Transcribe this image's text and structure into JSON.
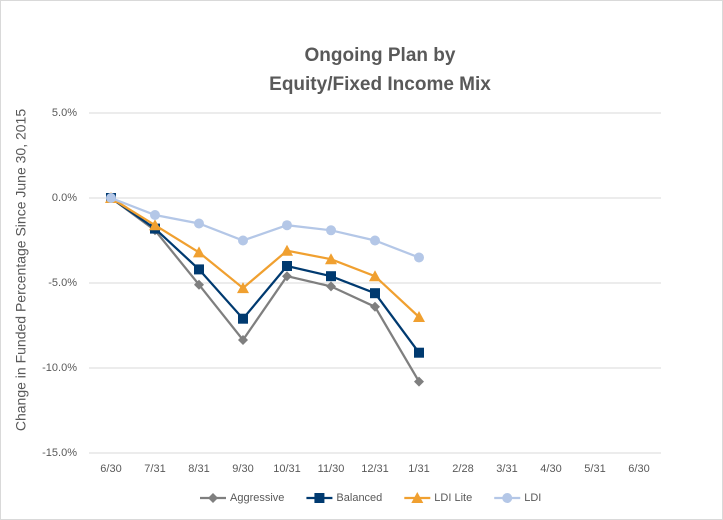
{
  "chart_data": {
    "type": "line",
    "title": [
      "Ongoing Plan by",
      "Equity/Fixed Income Mix"
    ],
    "y_label": "Change in Funded Percentage Since June 30, 2015",
    "categories": [
      "6/30",
      "7/31",
      "8/31",
      "9/30",
      "10/31",
      "11/30",
      "12/31",
      "1/31",
      "2/28",
      "3/31",
      "4/30",
      "5/31",
      "6/30"
    ],
    "series": [
      {
        "name": "Aggressive",
        "color": "#7f7f7f",
        "marker": "diamond",
        "values": [
          0,
          -1.9,
          -5.1,
          -8.35,
          -4.6,
          -5.2,
          -6.4,
          -10.8,
          null,
          null,
          null,
          null,
          null
        ]
      },
      {
        "name": "Balanced",
        "color": "#003a70",
        "marker": "square",
        "values": [
          0,
          -1.8,
          -4.2,
          -7.1,
          -4.0,
          -4.6,
          -5.6,
          -9.1,
          null,
          null,
          null,
          null,
          null
        ]
      },
      {
        "name": "LDI Lite",
        "color": "#f0a030",
        "marker": "triangle",
        "values": [
          0,
          -1.6,
          -3.2,
          -5.3,
          -3.1,
          -3.6,
          -4.6,
          -7.0,
          null,
          null,
          null,
          null,
          null
        ]
      },
      {
        "name": "LDI",
        "color": "#b4c7e7",
        "marker": "circle",
        "values": [
          0,
          -1.0,
          -1.5,
          -2.5,
          -1.6,
          -1.9,
          -2.5,
          -3.5,
          null,
          null,
          null,
          null,
          null
        ]
      }
    ],
    "ylim": [
      -15,
      5
    ],
    "yticks": [
      {
        "value": -15,
        "label": "-15.0%"
      },
      {
        "value": -10,
        "label": "-10.0%"
      },
      {
        "value": -5,
        "label": "-5.0%"
      },
      {
        "value": 0,
        "label": "0.0%"
      },
      {
        "value": 5,
        "label": "5.0%"
      }
    ],
    "grid": true,
    "legend": "bottom"
  }
}
